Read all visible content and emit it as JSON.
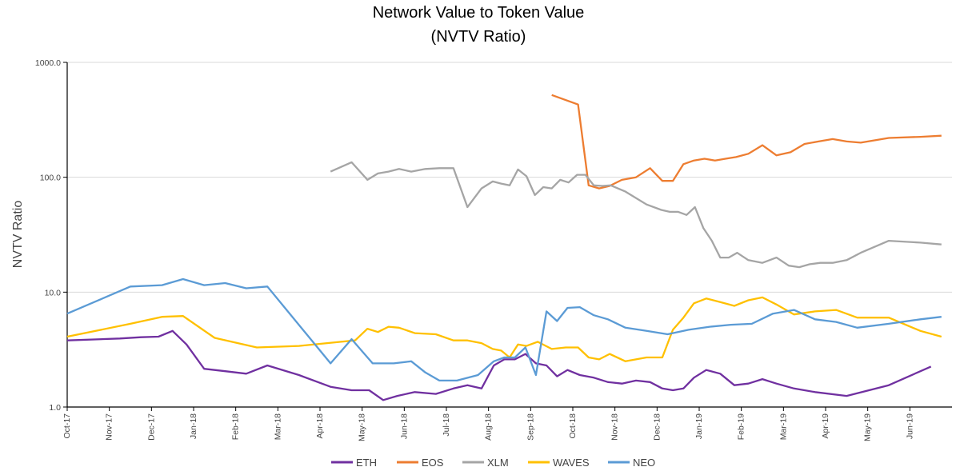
{
  "chart_data": {
    "type": "line",
    "title": "Network Value to Token Value",
    "subtitle": "(NVTV Ratio)",
    "ylabel": "NVTV Ratio",
    "xlabel": "",
    "yscale": "log",
    "ylim": [
      1,
      1000
    ],
    "yticks": [
      "1.0",
      "10.0",
      "100.0",
      "1000.0"
    ],
    "xticks": [
      "Oct-17",
      "Nov-17",
      "Dec-17",
      "Jan-18",
      "Feb-18",
      "Mar-18",
      "Apr-18",
      "May-18",
      "Jun-18",
      "Jul-18",
      "Aug-18",
      "Sep-18",
      "Oct-18",
      "Nov-18",
      "Dec-18",
      "Jan-19",
      "Feb-19",
      "Mar-19",
      "Apr-19",
      "May-19",
      "Jun-19"
    ],
    "grid": "horizontal",
    "legend": "bottom",
    "series": [
      {
        "name": "ETH",
        "color": "#7030a0",
        "points": [
          [
            "Oct-17",
            3.8
          ],
          [
            "Nov-17",
            3.95
          ],
          [
            "Nov-17",
            4.05
          ],
          [
            "Dec-17",
            4.1
          ],
          [
            "Dec-17",
            4.6
          ],
          [
            "Dec-17",
            3.5
          ],
          [
            "Jan-18",
            2.15
          ],
          [
            "Jan-18",
            2.05
          ],
          [
            "Feb-18",
            1.95
          ],
          [
            "Feb-18",
            2.3
          ],
          [
            "Mar-18",
            1.9
          ],
          [
            "Apr-18",
            1.5
          ],
          [
            "Apr-18",
            1.4
          ],
          [
            "May-18",
            1.4
          ],
          [
            "May-18",
            1.15
          ],
          [
            "May-18",
            1.25
          ],
          [
            "Jun-18",
            1.35
          ],
          [
            "Jun-18",
            1.3
          ],
          [
            "Jul-18",
            1.45
          ],
          [
            "Jul-18",
            1.55
          ],
          [
            "Jul-18",
            1.45
          ],
          [
            "Aug-18",
            2.3
          ],
          [
            "Aug-18",
            2.6
          ],
          [
            "Aug-18",
            2.6
          ],
          [
            "Aug-18",
            2.9
          ],
          [
            "Sep-18",
            2.4
          ],
          [
            "Sep-18",
            2.3
          ],
          [
            "Sep-18",
            1.85
          ],
          [
            "Sep-18",
            2.1
          ],
          [
            "Oct-18",
            1.9
          ],
          [
            "Oct-18",
            1.8
          ],
          [
            "Oct-18",
            1.65
          ],
          [
            "Nov-18",
            1.6
          ],
          [
            "Nov-18",
            1.7
          ],
          [
            "Nov-18",
            1.65
          ],
          [
            "Dec-18",
            1.45
          ],
          [
            "Dec-18",
            1.4
          ],
          [
            "Dec-18",
            1.45
          ],
          [
            "Dec-18",
            1.8
          ],
          [
            "Jan-19",
            2.1
          ],
          [
            "Jan-19",
            1.95
          ],
          [
            "Jan-19",
            1.55
          ],
          [
            "Feb-19",
            1.6
          ],
          [
            "Feb-19",
            1.75
          ],
          [
            "Feb-19",
            1.6
          ],
          [
            "Mar-19",
            1.45
          ],
          [
            "Mar-19",
            1.35
          ],
          [
            "Apr-19",
            1.25
          ],
          [
            "May-19",
            1.55
          ],
          [
            "Jun-19",
            2.25
          ]
        ]
      },
      {
        "name": "EOS",
        "color": "#ed7d31",
        "points": [
          [
            "Sep-18",
            520
          ],
          [
            "Oct-18",
            430
          ],
          [
            "Oct-18",
            85
          ],
          [
            "Oct-18",
            80
          ],
          [
            "Oct-18",
            84
          ],
          [
            "Nov-18",
            95
          ],
          [
            "Nov-18",
            100
          ],
          [
            "Nov-18",
            120
          ],
          [
            "Dec-18",
            93
          ],
          [
            "Dec-18",
            93
          ],
          [
            "Dec-18",
            130
          ],
          [
            "Dec-18",
            140
          ],
          [
            "Jan-19",
            145
          ],
          [
            "Jan-19",
            140
          ],
          [
            "Jan-19",
            145
          ],
          [
            "Jan-19",
            150
          ],
          [
            "Feb-19",
            160
          ],
          [
            "Feb-19",
            190
          ],
          [
            "Feb-19",
            155
          ],
          [
            "Mar-19",
            165
          ],
          [
            "Mar-19",
            195
          ],
          [
            "Mar-19",
            205
          ],
          [
            "Apr-19",
            215
          ],
          [
            "Apr-19",
            205
          ],
          [
            "Apr-19",
            200
          ],
          [
            "May-19",
            220
          ],
          [
            "Jun-19",
            225
          ],
          [
            "Jun-19",
            230
          ]
        ]
      },
      {
        "name": "XLM",
        "color": "#a5a5a5",
        "points": [
          [
            "Apr-18",
            112
          ],
          [
            "Apr-18",
            135
          ],
          [
            "May-18",
            95
          ],
          [
            "May-18",
            108
          ],
          [
            "May-18",
            112
          ],
          [
            "May-18",
            118
          ],
          [
            "Jun-18",
            112
          ],
          [
            "Jun-18",
            118
          ],
          [
            "Jun-18",
            120
          ],
          [
            "Jul-18",
            120
          ],
          [
            "Jul-18",
            55
          ],
          [
            "Jul-18",
            80
          ],
          [
            "Aug-18",
            92
          ],
          [
            "Aug-18",
            88
          ],
          [
            "Aug-18",
            85
          ],
          [
            "Aug-18",
            117
          ],
          [
            "Aug-18",
            102
          ],
          [
            "Sep-18",
            70
          ],
          [
            "Sep-18",
            82
          ],
          [
            "Sep-18",
            80
          ],
          [
            "Sep-18",
            95
          ],
          [
            "Sep-18",
            90
          ],
          [
            "Oct-18",
            105
          ],
          [
            "Oct-18",
            105
          ],
          [
            "Oct-18",
            85
          ],
          [
            "Oct-18",
            84
          ],
          [
            "Oct-18",
            85
          ],
          [
            "Nov-18",
            75
          ],
          [
            "Nov-18",
            58
          ],
          [
            "Dec-18",
            52
          ],
          [
            "Dec-18",
            50
          ],
          [
            "Dec-18",
            50
          ],
          [
            "Dec-18",
            47
          ],
          [
            "Dec-18",
            55
          ],
          [
            "Jan-19",
            36
          ],
          [
            "Jan-19",
            28
          ],
          [
            "Jan-19",
            20
          ],
          [
            "Jan-19",
            20
          ],
          [
            "Jan-19",
            22
          ],
          [
            "Feb-19",
            19
          ],
          [
            "Feb-19",
            18
          ],
          [
            "Feb-19",
            20
          ],
          [
            "Mar-19",
            17
          ],
          [
            "Mar-19",
            16.5
          ],
          [
            "Mar-19",
            17.5
          ],
          [
            "Mar-19",
            18
          ],
          [
            "Apr-19",
            18
          ],
          [
            "Apr-19",
            19
          ],
          [
            "Apr-19",
            22
          ],
          [
            "May-19",
            28
          ],
          [
            "Jun-19",
            27
          ],
          [
            "Jun-19",
            26
          ]
        ]
      },
      {
        "name": "WAVES",
        "color": "#ffc000",
        "points": [
          [
            "Oct-17",
            4.1
          ],
          [
            "Nov-17",
            5.3
          ],
          [
            "Dec-17",
            6.1
          ],
          [
            "Dec-17",
            6.2
          ],
          [
            "Jan-18",
            4.0
          ],
          [
            "Feb-18",
            3.3
          ],
          [
            "Mar-18",
            3.4
          ],
          [
            "Apr-18",
            3.6
          ],
          [
            "Apr-18",
            3.7
          ],
          [
            "Apr-18",
            3.8
          ],
          [
            "May-18",
            4.8
          ],
          [
            "May-18",
            4.5
          ],
          [
            "May-18",
            5.0
          ],
          [
            "May-18",
            4.9
          ],
          [
            "Jun-18",
            4.4
          ],
          [
            "Jun-18",
            4.3
          ],
          [
            "Jul-18",
            3.8
          ],
          [
            "Jul-18",
            3.8
          ],
          [
            "Jul-18",
            3.6
          ],
          [
            "Aug-18",
            3.2
          ],
          [
            "Aug-18",
            3.1
          ],
          [
            "Aug-18",
            2.7
          ],
          [
            "Aug-18",
            3.5
          ],
          [
            "Aug-18",
            3.4
          ],
          [
            "Sep-18",
            3.7
          ],
          [
            "Sep-18",
            3.2
          ],
          [
            "Sep-18",
            3.3
          ],
          [
            "Oct-18",
            3.3
          ],
          [
            "Oct-18",
            2.7
          ],
          [
            "Oct-18",
            2.6
          ],
          [
            "Oct-18",
            2.9
          ],
          [
            "Nov-18",
            2.5
          ],
          [
            "Nov-18",
            2.7
          ],
          [
            "Dec-18",
            2.7
          ],
          [
            "Dec-18",
            4.7
          ],
          [
            "Dec-18",
            6.0
          ],
          [
            "Dec-18",
            8.0
          ],
          [
            "Jan-19",
            8.8
          ],
          [
            "Jan-19",
            8.2
          ],
          [
            "Jan-19",
            7.6
          ],
          [
            "Feb-19",
            8.5
          ],
          [
            "Feb-19",
            9.0
          ],
          [
            "Feb-19",
            7.8
          ],
          [
            "Mar-19",
            6.4
          ],
          [
            "Mar-19",
            6.8
          ],
          [
            "Apr-19",
            7.0
          ],
          [
            "Apr-19",
            6.0
          ],
          [
            "May-19",
            6.0
          ],
          [
            "Jun-19",
            4.6
          ],
          [
            "Jun-19",
            4.1
          ]
        ]
      },
      {
        "name": "NEO",
        "color": "#5b9bd5",
        "points": [
          [
            "Oct-17",
            6.5
          ],
          [
            "Nov-17",
            11.2
          ],
          [
            "Dec-17",
            11.5
          ],
          [
            "Dec-17",
            13.0
          ],
          [
            "Jan-18",
            11.5
          ],
          [
            "Jan-18",
            12.0
          ],
          [
            "Feb-18",
            10.8
          ],
          [
            "Feb-18",
            11.2
          ],
          [
            "Apr-18",
            2.4
          ],
          [
            "Apr-18",
            3.9
          ],
          [
            "May-18",
            2.4
          ],
          [
            "May-18",
            2.4
          ],
          [
            "Jun-18",
            2.5
          ],
          [
            "Jun-18",
            2.0
          ],
          [
            "Jun-18",
            1.7
          ],
          [
            "Jul-18",
            1.7
          ],
          [
            "Jul-18",
            1.9
          ],
          [
            "Aug-18",
            2.5
          ],
          [
            "Aug-18",
            2.7
          ],
          [
            "Aug-18",
            2.7
          ],
          [
            "Aug-18",
            3.3
          ],
          [
            "Sep-18",
            1.9
          ],
          [
            "Sep-18",
            6.8
          ],
          [
            "Sep-18",
            5.6
          ],
          [
            "Sep-18",
            7.3
          ],
          [
            "Oct-18",
            7.4
          ],
          [
            "Oct-18",
            6.3
          ],
          [
            "Oct-18",
            5.8
          ],
          [
            "Nov-18",
            4.9
          ],
          [
            "Nov-18",
            4.6
          ],
          [
            "Dec-18",
            4.3
          ],
          [
            "Dec-18",
            4.7
          ],
          [
            "Jan-19",
            5.0
          ],
          [
            "Jan-19",
            5.2
          ],
          [
            "Feb-19",
            5.3
          ],
          [
            "Feb-19",
            6.5
          ],
          [
            "Mar-19",
            7.0
          ],
          [
            "Mar-19",
            5.8
          ],
          [
            "Apr-19",
            5.5
          ],
          [
            "Apr-19",
            4.9
          ],
          [
            "May-19",
            5.3
          ],
          [
            "Jun-19",
            5.8
          ],
          [
            "Jun-19",
            6.1
          ]
        ]
      }
    ]
  }
}
